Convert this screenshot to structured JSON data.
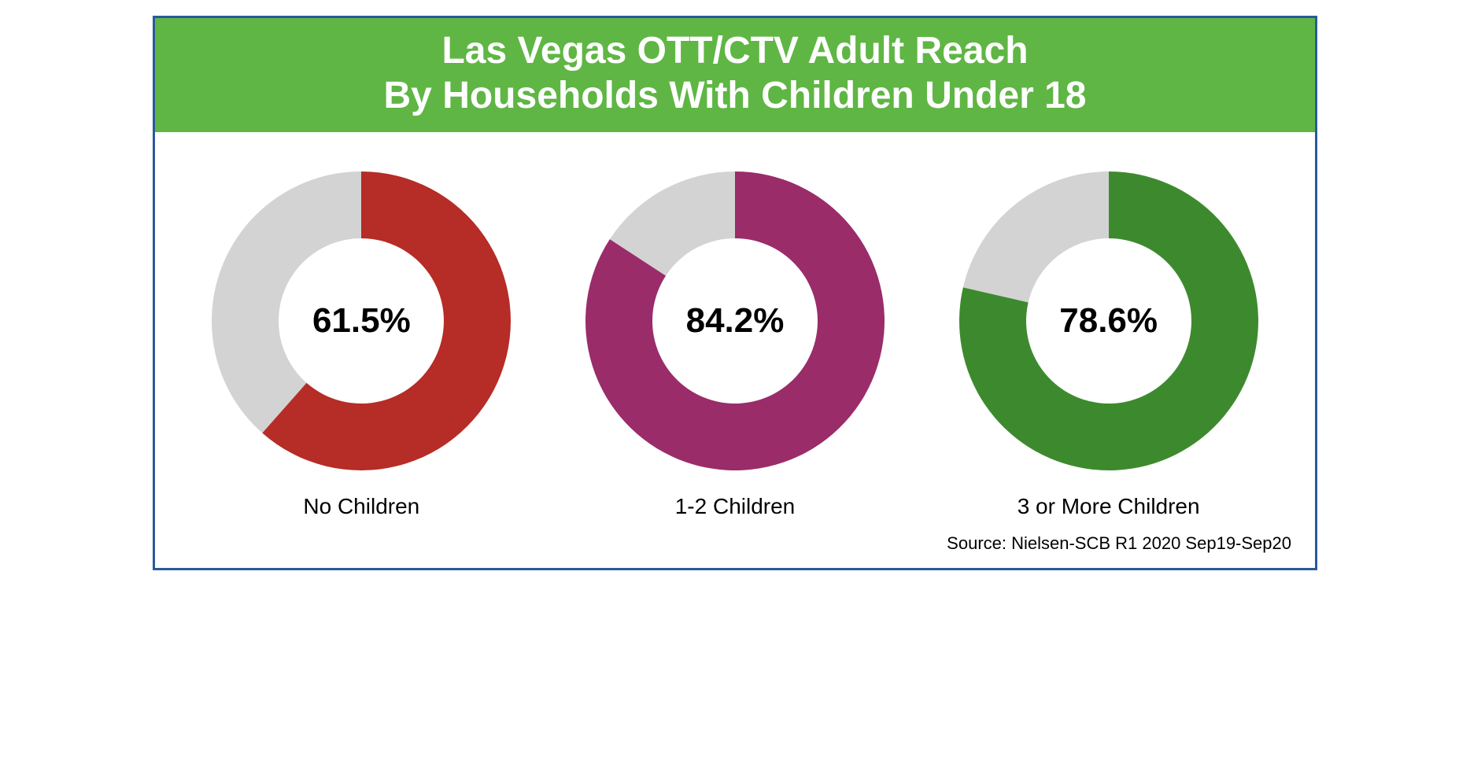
{
  "header": {
    "line1": "Las Vegas OTT/CTV Adult Reach",
    "line2": "By Households With Children Under 18",
    "background_color": "#5fb644",
    "text_color": "#ffffff",
    "fontsize": 48,
    "font_weight": "bold"
  },
  "container": {
    "border_color": "#2a5a9a",
    "border_width": 3,
    "background_color": "#ffffff"
  },
  "donut_defaults": {
    "type": "donut",
    "size": 400,
    "outer_radius": 190,
    "inner_radius": 105,
    "remainder_color": "#d3d3d3",
    "start_angle_deg": 0,
    "direction": "clockwise",
    "center_fontsize": 44,
    "center_font_weight": "bold",
    "center_color": "#000000",
    "label_fontsize": 28,
    "label_color": "#000000"
  },
  "charts": [
    {
      "id": "no-children",
      "percent": 61.5,
      "percent_label": "61.5%",
      "label": "No Children",
      "fill_color": "#b62c26"
    },
    {
      "id": "one-two-children",
      "percent": 84.2,
      "percent_label": "84.2%",
      "label": "1-2 Children",
      "fill_color": "#9a2c6a"
    },
    {
      "id": "three-plus-children",
      "percent": 78.6,
      "percent_label": "78.6%",
      "label": "3 or More Children",
      "fill_color": "#3d8a2e"
    }
  ],
  "source": {
    "text": "Source: Nielsen-SCB R1 2020 Sep19-Sep20",
    "fontsize": 22,
    "color": "#000000"
  }
}
